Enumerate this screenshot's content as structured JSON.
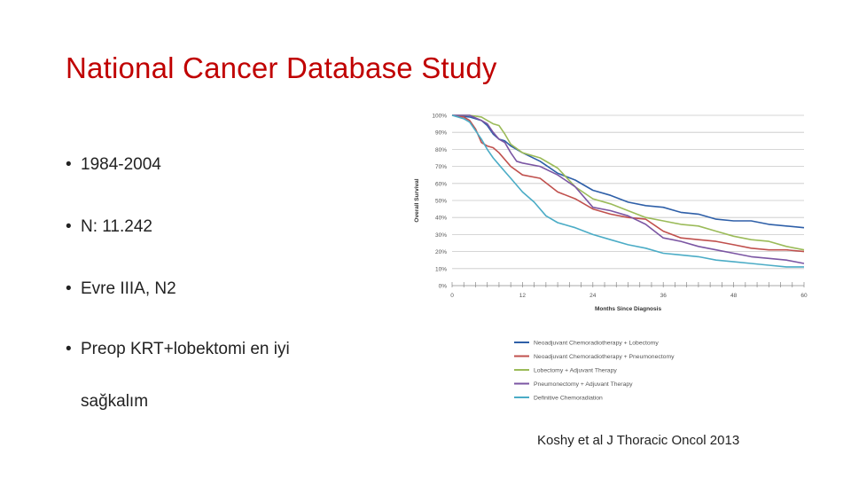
{
  "slide": {
    "title": "National Cancer Database Study",
    "bullets": [
      "1984-2004",
      "N: 11.242",
      "Evre IIIA, N2",
      "Preop KRT+lobektomi en iyi"
    ],
    "bullet_continuation": "sağkalım",
    "bullet_symbol": "•",
    "citation": "Koshy et al J Thoracic Oncol 2013"
  },
  "colors": {
    "title": "#c00000",
    "text": "#222222"
  },
  "chart_data": {
    "type": "line",
    "xlabel": "Months Since Diagnosis",
    "ylabel": "Overall Survival",
    "xlim": [
      0,
      60
    ],
    "ylim": [
      0,
      100
    ],
    "x_ticks": [
      0,
      12,
      24,
      36,
      48,
      60
    ],
    "x_tick_labels": [
      "0",
      "12",
      "24",
      "36",
      "48",
      "60"
    ],
    "y_ticks": [
      0,
      10,
      20,
      30,
      40,
      50,
      60,
      70,
      80,
      90,
      100
    ],
    "y_tick_labels": [
      "0%",
      "10%",
      "20%",
      "30%",
      "40%",
      "50%",
      "60%",
      "70%",
      "80%",
      "90%",
      "100%"
    ],
    "grid": true,
    "legend_position": "bottom",
    "series": [
      {
        "name": "Neoadjuvant Chemoradiotherapy + Lobectomy",
        "color": "#2e5fa8",
        "x": [
          0,
          3,
          5,
          6,
          7,
          8,
          9,
          10,
          12,
          15,
          18,
          21,
          24,
          27,
          30,
          33,
          36,
          39,
          42,
          45,
          48,
          51,
          54,
          57,
          60
        ],
        "y": [
          100,
          99,
          97,
          94,
          89,
          86,
          85,
          82,
          78,
          73,
          66,
          62,
          56,
          53,
          49,
          47,
          46,
          43,
          42,
          39,
          38,
          38,
          36,
          35,
          34
        ]
      },
      {
        "name": "Neoadjuvant Chemoradiotherapy + Pneumonectomy",
        "color": "#c0504d",
        "x": [
          0,
          2,
          3,
          4,
          5,
          6,
          7,
          8,
          10,
          12,
          15,
          18,
          21,
          24,
          27,
          30,
          33,
          36,
          39,
          42,
          45,
          48,
          51,
          54,
          57,
          60
        ],
        "y": [
          100,
          99,
          97,
          92,
          84,
          82,
          81,
          78,
          70,
          65,
          63,
          55,
          51,
          45,
          42,
          40,
          39,
          32,
          28,
          27,
          26,
          24,
          22,
          21,
          21,
          20
        ]
      },
      {
        "name": "Lobectomy + Adjuvant Therapy",
        "color": "#9bbb59",
        "x": [
          0,
          3,
          5,
          6,
          7,
          8,
          9,
          10,
          12,
          15,
          18,
          21,
          24,
          27,
          30,
          33,
          36,
          39,
          42,
          45,
          48,
          51,
          54,
          57,
          60
        ],
        "y": [
          100,
          100,
          99,
          97,
          95,
          94,
          89,
          83,
          78,
          75,
          69,
          58,
          51,
          48,
          44,
          40,
          38,
          36,
          35,
          32,
          29,
          27,
          26,
          23,
          21
        ]
      },
      {
        "name": "Pneumonectomy + Adjuvant Therapy",
        "color": "#7b56a3",
        "x": [
          0,
          3,
          5,
          6,
          7,
          8,
          9,
          10,
          11,
          12,
          15,
          18,
          21,
          24,
          27,
          30,
          33,
          36,
          39,
          42,
          45,
          48,
          51,
          54,
          57,
          60
        ],
        "y": [
          100,
          100,
          97,
          95,
          90,
          86,
          84,
          78,
          73,
          72,
          70,
          65,
          58,
          46,
          44,
          41,
          36,
          28,
          26,
          23,
          21,
          19,
          17,
          16,
          15,
          13
        ]
      },
      {
        "name": "Definitive Chemoradiation",
        "color": "#4bacc6",
        "x": [
          0,
          2,
          3,
          4,
          5,
          6,
          7,
          8,
          9,
          10,
          12,
          14,
          16,
          18,
          21,
          24,
          27,
          30,
          33,
          36,
          39,
          42,
          45,
          48,
          51,
          54,
          57,
          60
        ],
        "y": [
          100,
          98,
          96,
          91,
          86,
          80,
          75,
          71,
          67,
          63,
          55,
          49,
          41,
          37,
          34,
          30,
          27,
          24,
          22,
          19,
          18,
          17,
          15,
          14,
          13,
          12,
          11,
          11
        ]
      }
    ]
  }
}
